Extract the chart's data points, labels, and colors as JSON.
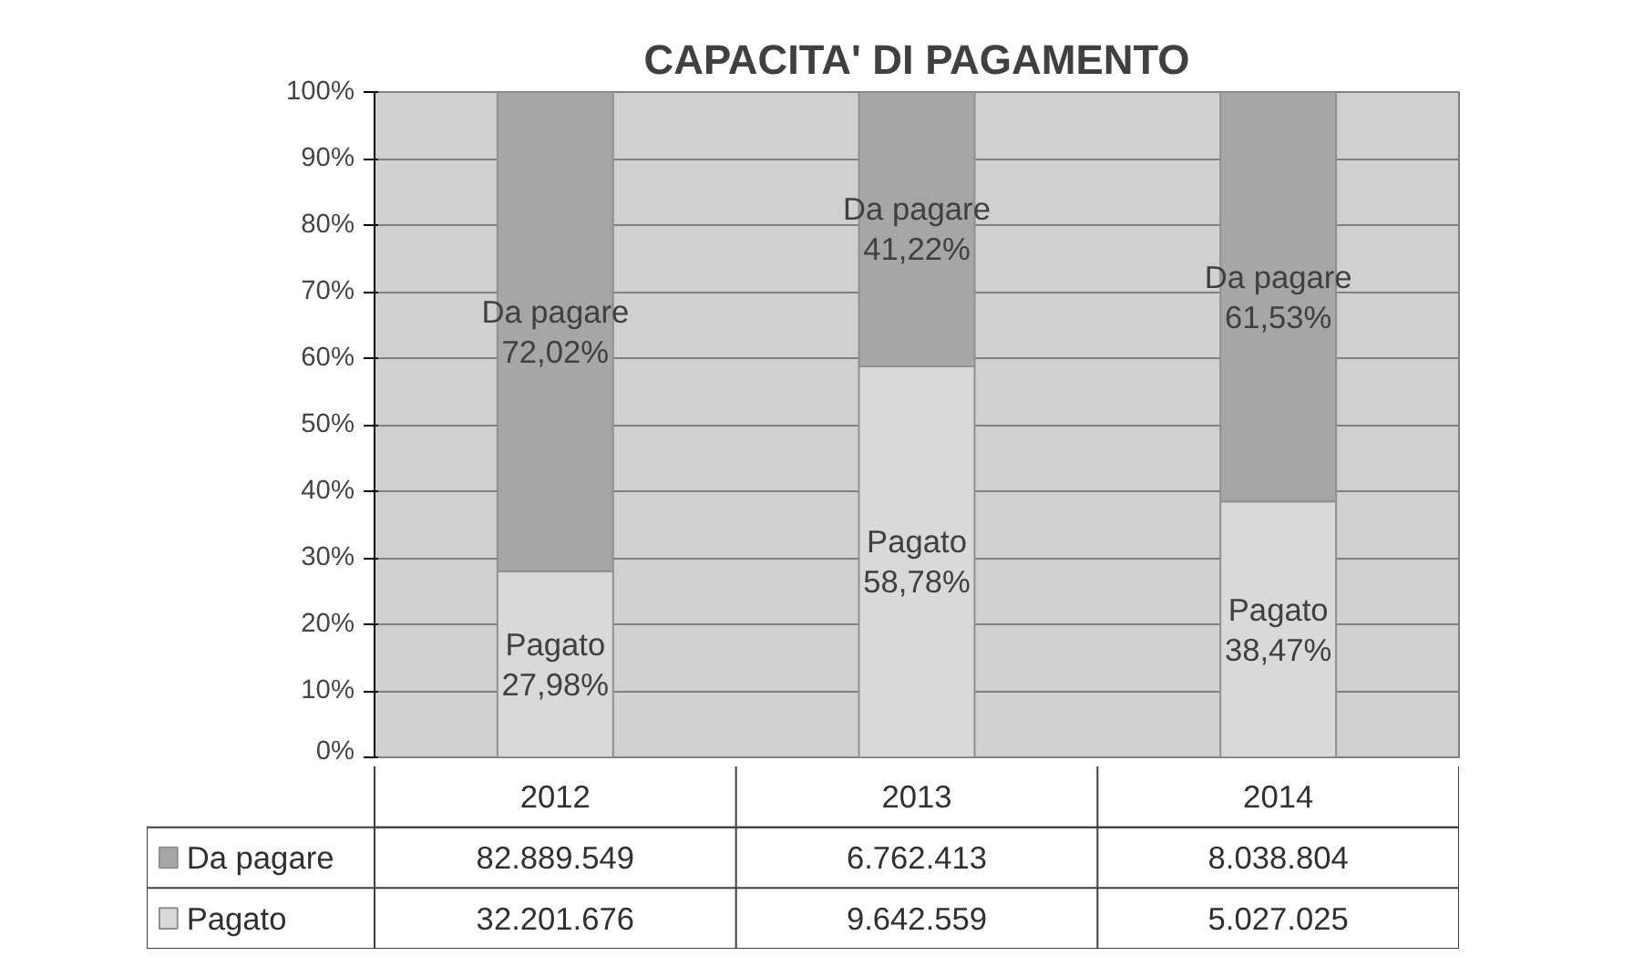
{
  "chart_data": {
    "type": "bar",
    "title": "CAPACITA' DI PAGAMENTO",
    "stacked": true,
    "categories": [
      "2012",
      "2013",
      "2014"
    ],
    "series": [
      {
        "name": "Pagato",
        "color": "#d9d9d9",
        "values": [
          27.98,
          58.78,
          38.47
        ],
        "value_labels": [
          "27,98%",
          "58,78%",
          "38,47%"
        ]
      },
      {
        "name": "Da pagare",
        "color": "#a6a6a6",
        "values": [
          72.02,
          41.22,
          61.53
        ],
        "value_labels": [
          "72,02%",
          "41,22%",
          "61,53%"
        ]
      }
    ],
    "ylim": [
      0,
      100
    ],
    "yticks": [
      {
        "value": 0,
        "label": "0%"
      },
      {
        "value": 10,
        "label": "10%"
      },
      {
        "value": 20,
        "label": "20%"
      },
      {
        "value": 30,
        "label": "30%"
      },
      {
        "value": 40,
        "label": "40%"
      },
      {
        "value": 50,
        "label": "50%"
      },
      {
        "value": 60,
        "label": "60%"
      },
      {
        "value": 70,
        "label": "70%"
      },
      {
        "value": 80,
        "label": "80%"
      },
      {
        "value": 90,
        "label": "90%"
      },
      {
        "value": 100,
        "label": "100%"
      }
    ],
    "grid": "y",
    "legend": "bottom",
    "annotations": [
      "32.201.676",
      "9.642.559",
      "5.027.025",
      "82.889.549",
      "6.762.413",
      "8.038.804"
    ]
  }
}
